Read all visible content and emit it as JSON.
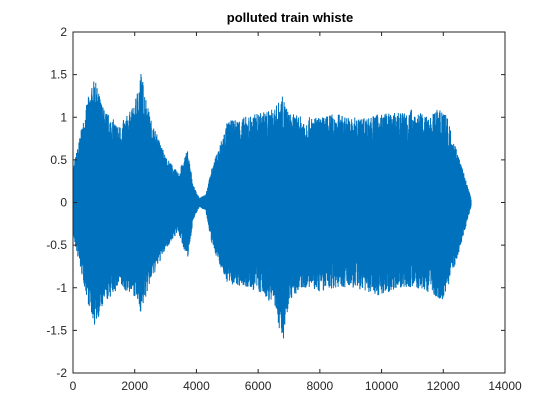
{
  "chart_data": {
    "type": "line",
    "title": "polluted train whiste",
    "xlabel": "",
    "ylabel": "",
    "xlim": [
      0,
      14000
    ],
    "ylim": [
      -2,
      2
    ],
    "x_ticks": [
      0,
      2000,
      4000,
      6000,
      8000,
      10000,
      12000,
      14000
    ],
    "y_ticks": [
      -2,
      -1.5,
      -1,
      -0.5,
      0,
      0.5,
      1,
      1.5,
      2
    ],
    "x_tick_labels": [
      "0",
      "2000",
      "4000",
      "6000",
      "8000",
      "10000",
      "12000",
      "14000"
    ],
    "y_tick_labels": [
      "-2",
      "-1.5",
      "-1",
      "-0.5",
      "0",
      "0.5",
      "1",
      "1.5",
      "2"
    ],
    "grid": false,
    "series_color": "#0072BD",
    "series": [
      {
        "x": [
          0,
          500,
          700,
          1000,
          1500,
          2000,
          2200,
          2500,
          3000,
          3200,
          3400,
          3600,
          3700,
          3900,
          4100,
          4300,
          4500,
          5000,
          5500,
          6000,
          6500,
          6800,
          7000,
          7500,
          8000,
          8500,
          9000,
          9500,
          10000,
          10500,
          11000,
          11500,
          12000,
          12500,
          12900
        ],
        "upper": [
          0.4,
          1.25,
          1.45,
          1.1,
          0.9,
          1.15,
          1.55,
          1.0,
          0.55,
          0.45,
          0.35,
          0.5,
          0.65,
          0.2,
          0.05,
          0.1,
          0.4,
          0.95,
          1.0,
          1.05,
          1.1,
          1.25,
          1.05,
          1.0,
          1.0,
          1.05,
          1.0,
          1.0,
          1.05,
          1.05,
          1.1,
          1.0,
          1.15,
          0.55,
          0.05
        ],
        "lower": [
          -0.4,
          -1.2,
          -1.45,
          -1.2,
          -1.0,
          -1.1,
          -1.3,
          -0.95,
          -0.55,
          -0.45,
          -0.35,
          -0.55,
          -0.7,
          -0.2,
          -0.05,
          -0.1,
          -0.5,
          -0.95,
          -1.0,
          -1.05,
          -1.2,
          -1.65,
          -1.15,
          -1.0,
          -1.05,
          -1.0,
          -1.0,
          -1.05,
          -1.1,
          -1.0,
          -1.0,
          -1.05,
          -1.15,
          -0.6,
          -0.05
        ]
      }
    ]
  }
}
